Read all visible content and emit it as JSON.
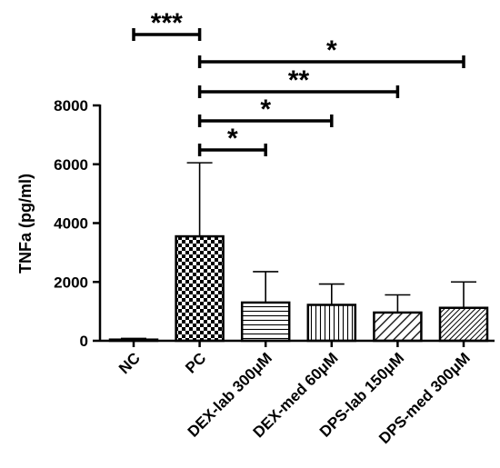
{
  "chart_data": {
    "type": "bar",
    "ylabel": "TNFa (pg/ml)",
    "ylim": [
      0,
      8000
    ],
    "yticks": [
      0,
      2000,
      4000,
      6000,
      8000
    ],
    "categories": [
      "NC",
      "PC",
      "DEX-lab 300μM",
      "DEX-med 60μM",
      "DPS-lab 150μM",
      "DPS-med 300μM"
    ],
    "values": [
      40,
      3550,
      1300,
      1220,
      960,
      1120
    ],
    "errors": [
      40,
      2500,
      1050,
      710,
      600,
      880
    ],
    "fill_patterns": [
      "solid-white",
      "checkerboard",
      "horizontal-lines",
      "vertical-lines",
      "diagonal-lines-sparse",
      "diagonal-lines-dense"
    ],
    "significance": [
      {
        "from": "NC",
        "to": "PC",
        "label": "***"
      },
      {
        "from": "PC",
        "to": "DPS-med 300μM",
        "label": "*"
      },
      {
        "from": "PC",
        "to": "DPS-lab 150μM",
        "label": "**"
      },
      {
        "from": "PC",
        "to": "DEX-med 60μM",
        "label": "*"
      },
      {
        "from": "PC",
        "to": "DEX-lab 300μM",
        "label": "*"
      }
    ],
    "grid": false
  }
}
